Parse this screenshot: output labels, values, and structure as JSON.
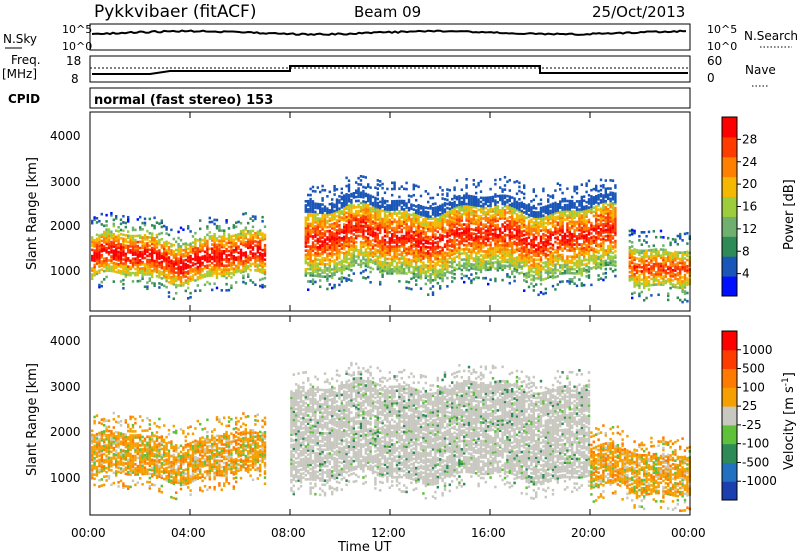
{
  "header": {
    "station": "Pykkvibaer (fitACF)",
    "beam": "Beam 09",
    "date": "25/Oct/2013"
  },
  "strip_panels": {
    "nsky_label": "N.Sky",
    "nsearch_label": "N.Search",
    "count_ticks_left": [
      "10^5",
      "10^0"
    ],
    "count_ticks_right": [
      "10^5",
      "10^0"
    ],
    "freq_label": "Freq.",
    "freq_unit": "[MHz]",
    "freq_ticks": [
      "18",
      "8"
    ],
    "nave_label": "Nave",
    "nave_ticks": [
      "60",
      "0"
    ],
    "cpid_label": "CPID",
    "cpid_value": "normal (fast stereo) 153"
  },
  "axes": {
    "xlabel": "Time UT",
    "x_ticks": [
      "00:00",
      "04:00",
      "08:00",
      "12:00",
      "16:00",
      "20:00",
      "00:00"
    ],
    "ylabel": "Slant Range [km]",
    "y_ticks": [
      "4000",
      "3000",
      "2000",
      "1000"
    ]
  },
  "colorbars": {
    "power": {
      "label": "Power [dB]",
      "ticks": [
        "28",
        "24",
        "20",
        "16",
        "12",
        "8",
        "4"
      ],
      "colors": [
        "#0010ff",
        "#1a55b8",
        "#2e8b57",
        "#6fb06f",
        "#9dcc3c",
        "#f5b800",
        "#ff7f00",
        "#ff3b00",
        "#ff0000"
      ]
    },
    "velocity": {
      "label": "Velocity [m s",
      "label_sup": "-1",
      "label_end": "]",
      "ticks": [
        "1000",
        "500",
        "100",
        "25",
        "-25",
        "-100",
        "-500",
        "-1000"
      ],
      "colors": [
        "#1c3fb0",
        "#2270c0",
        "#2e8b57",
        "#5fc03a",
        "#c8c8c0",
        "#f5a000",
        "#ff7a00",
        "#ff3b00",
        "#ff0000"
      ]
    }
  },
  "chart_data": {
    "type": "heatmap",
    "panels": [
      {
        "name": "power",
        "x_range_hours": [
          0,
          24
        ],
        "y_range_km": [
          150,
          4500
        ],
        "dominant_layers": [
          {
            "from_h": 0,
            "to_h": 7,
            "range_km": [
              900,
              1800
            ],
            "level_db": 26
          },
          {
            "from_h": 8.5,
            "to_h": 21,
            "range_km": [
              1000,
              2600
            ],
            "level_db": 24
          },
          {
            "from_h": 21.5,
            "to_h": 24,
            "range_km": [
              800,
              1600
            ],
            "level_db": 22
          }
        ]
      },
      {
        "name": "velocity",
        "x_range_hours": [
          0,
          24
        ],
        "y_range_km": [
          150,
          4500
        ],
        "dominant_layers": [
          {
            "from_h": 0,
            "to_h": 7,
            "range_km": [
              1000,
              1900
            ],
            "velocity": -300
          },
          {
            "from_h": 8,
            "to_h": 20,
            "range_km": [
              1000,
              3000
            ],
            "velocity": 0
          },
          {
            "from_h": 20,
            "to_h": 24,
            "range_km": [
              700,
              1600
            ],
            "velocity": -400
          }
        ]
      }
    ]
  }
}
